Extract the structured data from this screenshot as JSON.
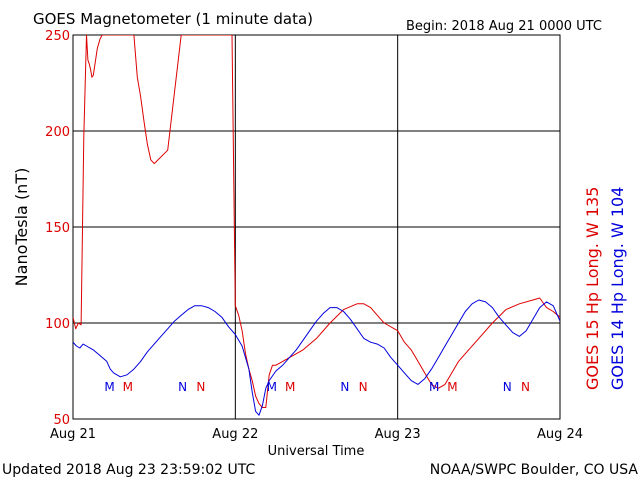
{
  "chart_data": {
    "type": "line",
    "title": "GOES Magnetometer (1 minute data)",
    "begin_label": "Begin:  2018 Aug 21 0000 UTC",
    "xlabel": "Universal Time",
    "ylabel": "NanoTesla (nT)",
    "ylim": [
      50,
      250
    ],
    "yticks": [
      "50",
      "100",
      "150",
      "200",
      "250"
    ],
    "xlim": [
      0,
      72
    ],
    "xticks": [
      "Aug 21",
      "Aug 22",
      "Aug 23",
      "Aug 24"
    ],
    "grid": true,
    "legend_position": "right (vertical)",
    "series": [
      {
        "name": "GOES 15 Hp  Long. W 135",
        "color": "#dd0000",
        "x": [
          0,
          0.4,
          0.8,
          1.2,
          1.6,
          2.0,
          2.2,
          2.4,
          2.6,
          2.8,
          3.0,
          3.3,
          3.6,
          4.0,
          4.3,
          4.6,
          5.0,
          5.5,
          6.0,
          6.5,
          7.0,
          7.5,
          8.0,
          8.5,
          9.0,
          9.5,
          10.0,
          10.5,
          11.0,
          11.5,
          12.0,
          14.0,
          16.0,
          18.0,
          20.0,
          22.0,
          23.0,
          23.5,
          24.0,
          24.5,
          25.0,
          25.5,
          26.0,
          26.5,
          27.0,
          27.5,
          28.0,
          28.5,
          29.0,
          29.5,
          30.0,
          31.0,
          32.0,
          34.0,
          36.0,
          38.0,
          40.0,
          42.0,
          43.0,
          44.0,
          46.0,
          48.0,
          49.0,
          50.0,
          51.0,
          52.0,
          53.0,
          54.0,
          55.0,
          56.0,
          57.0,
          58.0,
          60.0,
          62.0,
          64.0,
          66.0,
          68.0,
          69.0,
          70.0,
          71.0,
          72.0
        ],
        "y": [
          103,
          97,
          100,
          99,
          197,
          250,
          237,
          235,
          232,
          228,
          229,
          236,
          243,
          248,
          250,
          250,
          250,
          250,
          250,
          250,
          250,
          250,
          250,
          250,
          250,
          228,
          218,
          205,
          193,
          185,
          183,
          190,
          250,
          250,
          250,
          250,
          250,
          250,
          109,
          104,
          96,
          84,
          76,
          70,
          62,
          58,
          56,
          56,
          73,
          78,
          78,
          80,
          82,
          86,
          92,
          100,
          107,
          110,
          110,
          108,
          100,
          96,
          90,
          86,
          80,
          74,
          68,
          66,
          68,
          74,
          80,
          84,
          92,
          100,
          107,
          110,
          112,
          113,
          108,
          106,
          103
        ]
      },
      {
        "name": "GOES 14 Hp  Long. W 104",
        "color": "#0000dd",
        "x": [
          0,
          0.5,
          1.0,
          1.5,
          2.0,
          3.0,
          4.0,
          5.0,
          5.5,
          6.0,
          7.0,
          8.0,
          9.0,
          10.0,
          11.0,
          12.0,
          13.0,
          14.0,
          15.0,
          16.0,
          17.0,
          18.0,
          19.0,
          20.0,
          21.0,
          22.0,
          23.0,
          24.0,
          25.0,
          26.0,
          26.5,
          27.0,
          27.5,
          28.0,
          28.5,
          29.0,
          30.0,
          31.0,
          32.0,
          33.0,
          34.0,
          35.0,
          36.0,
          37.0,
          38.0,
          39.0,
          40.0,
          41.0,
          42.0,
          43.0,
          44.0,
          45.0,
          46.0,
          47.0,
          48.0,
          49.0,
          50.0,
          51.0,
          52.0,
          53.0,
          54.0,
          55.0,
          56.0,
          57.0,
          58.0,
          59.0,
          60.0,
          61.0,
          62.0,
          63.0,
          64.0,
          65.0,
          66.0,
          67.0,
          68.0,
          69.0,
          70.0,
          71.0,
          72.0
        ],
        "y": [
          90,
          88,
          87,
          89,
          88,
          86,
          83,
          80,
          76,
          74,
          72,
          73,
          76,
          80,
          85,
          89,
          93,
          97,
          101,
          104,
          107,
          109,
          109,
          108,
          106,
          103,
          98,
          94,
          88,
          76,
          64,
          54,
          52,
          57,
          66,
          70,
          75,
          78,
          82,
          86,
          91,
          96,
          101,
          105,
          108,
          108,
          106,
          102,
          97,
          92,
          90,
          89,
          87,
          82,
          78,
          74,
          70,
          68,
          71,
          76,
          82,
          88,
          94,
          100,
          106,
          110,
          112,
          111,
          108,
          103,
          99,
          95,
          93,
          96,
          102,
          108,
          111,
          109,
          101
        ]
      }
    ],
    "annotations": [
      {
        "text": "M",
        "x": 5.4,
        "color": "#0000dd"
      },
      {
        "text": "M",
        "x": 8.1,
        "color": "#dd0000"
      },
      {
        "text": "N",
        "x": 16.2,
        "color": "#0000dd"
      },
      {
        "text": "N",
        "x": 18.9,
        "color": "#dd0000"
      },
      {
        "text": "M",
        "x": 29.4,
        "color": "#0000dd"
      },
      {
        "text": "M",
        "x": 32.1,
        "color": "#dd0000"
      },
      {
        "text": "N",
        "x": 40.2,
        "color": "#0000dd"
      },
      {
        "text": "N",
        "x": 42.9,
        "color": "#dd0000"
      },
      {
        "text": "M",
        "x": 53.4,
        "color": "#0000dd"
      },
      {
        "text": "M",
        "x": 56.1,
        "color": "#dd0000"
      },
      {
        "text": "N",
        "x": 64.2,
        "color": "#0000dd"
      },
      {
        "text": "N",
        "x": 66.9,
        "color": "#dd0000"
      }
    ]
  },
  "footer": {
    "updated": "Updated 2018 Aug 23 23:59:02 UTC",
    "source": "NOAA/SWPC Boulder, CO USA"
  }
}
